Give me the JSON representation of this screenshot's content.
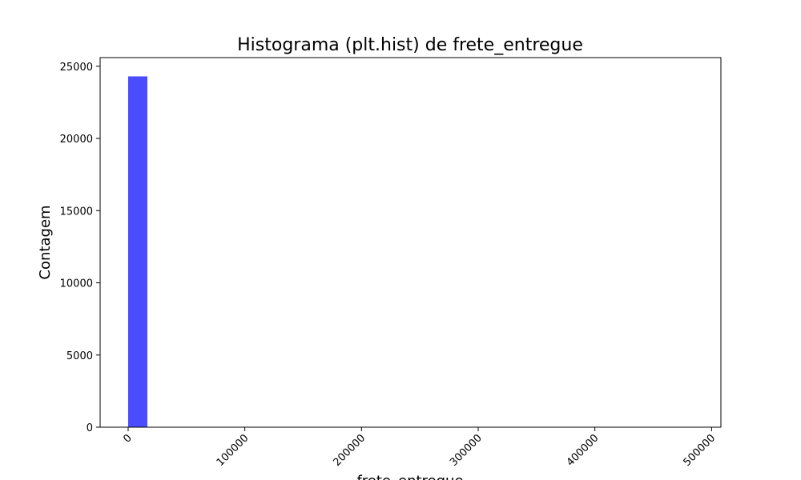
{
  "chart_data": {
    "type": "bar",
    "title": "Histograma (plt.hist) de frete_entregue",
    "xlabel": "frete_entregue",
    "ylabel": "Contagem",
    "bar_color": "#4b4bff",
    "xlim": [
      -24000,
      508000
    ],
    "ylim": [
      0,
      25600
    ],
    "xticks": [
      0,
      100000,
      200000,
      300000,
      400000,
      500000
    ],
    "xtick_labels": [
      "0",
      "100000",
      "200000",
      "300000",
      "400000",
      "500000"
    ],
    "yticks": [
      0,
      5000,
      10000,
      15000,
      20000,
      25000
    ],
    "ytick_labels": [
      "0",
      "5000",
      "10000",
      "15000",
      "20000",
      "25000"
    ],
    "bins": [
      {
        "start": 0,
        "end": 16500,
        "count": 24300
      }
    ],
    "grid": false,
    "legend": "none"
  }
}
